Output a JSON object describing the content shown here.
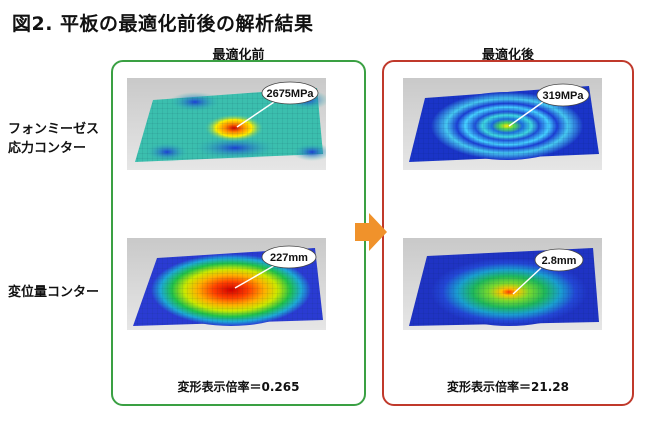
{
  "title": "図2. 平板の最適化前後の解析結果",
  "rows": {
    "stress_label_line1": "フォンミーゼス",
    "stress_label_line2": "応力コンター",
    "disp_label": "変位量コンター"
  },
  "before": {
    "heading": "最適化前",
    "stress_value": "2675MPa",
    "disp_value": "227mm",
    "scale_caption": "変形表示倍率＝0.265"
  },
  "after": {
    "heading": "最適化後",
    "stress_value": "319MPa",
    "disp_value": "2.8mm",
    "scale_caption": "変形表示倍率＝21.28"
  },
  "colors": {
    "before_border": "#3aa043",
    "after_border": "#c0392b",
    "arrow": "#f0922b"
  }
}
